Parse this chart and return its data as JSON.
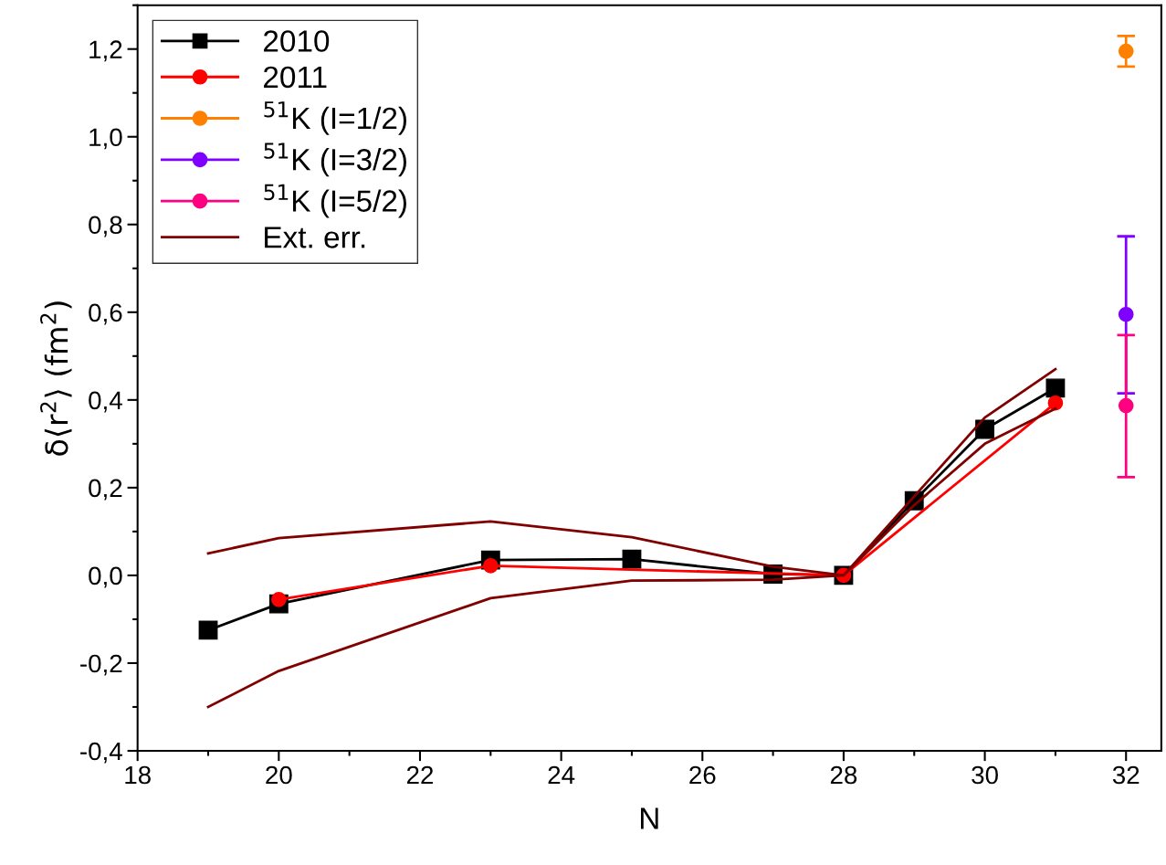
{
  "chart_data": {
    "type": "line",
    "xlabel": "N",
    "ylabel": "δ⟨r$^{2}$⟩ (fm$^{2}$)",
    "xlim": [
      18,
      32.5
    ],
    "xticks": [
      18,
      20,
      22,
      24,
      26,
      28,
      30,
      32
    ],
    "ylim": [
      -0.4,
      1.3
    ],
    "yticks": [
      {
        "value": -0.4,
        "label": "-0,4"
      },
      {
        "value": -0.2,
        "label": "-0,2"
      },
      {
        "value": 0,
        "label": "0,0"
      },
      {
        "value": 0.2,
        "label": "0,2"
      },
      {
        "value": 0.4,
        "label": "0,4"
      },
      {
        "value": 0.6,
        "label": "0,6"
      },
      {
        "value": 0.8,
        "label": "0,8"
      },
      {
        "value": 1.0,
        "label": "1,0"
      },
      {
        "value": 1.2,
        "label": "1,2"
      }
    ],
    "grid": false,
    "legend": "top left",
    "series": [
      {
        "name": "2010",
        "color": "#000000",
        "marker": "square",
        "x": [
          19,
          20,
          23,
          25,
          27,
          28,
          29,
          30,
          31
        ],
        "values": [
          -0.125,
          -0.065,
          0.035,
          0.037,
          0.003,
          0,
          0.17,
          0.333,
          0.427
        ]
      },
      {
        "name": "2011",
        "color": "#ff0000",
        "marker": "circle",
        "x": [
          20,
          23,
          28,
          31
        ],
        "values": [
          -0.055,
          0.022,
          0,
          0.393
        ]
      },
      {
        "name": "$^{51}$K (I=1/2)",
        "color": "#ff8000",
        "marker": "circle",
        "x": [
          32
        ],
        "values": [
          1.195
        ],
        "errors": [
          [
            1.16,
            1.23
          ]
        ]
      },
      {
        "name": "$^{51}$K (I=3/2)",
        "color": "#8000ff",
        "marker": "circle",
        "x": [
          32
        ],
        "values": [
          0.595
        ],
        "errors": [
          [
            0.415,
            0.773
          ]
        ]
      },
      {
        "name": "$^{51}$K (I=5/2)",
        "color": "#ff0080",
        "marker": "circle",
        "x": [
          32
        ],
        "values": [
          0.387
        ],
        "errors": [
          [
            0.224,
            0.548
          ]
        ]
      },
      {
        "name": "Ext. err.",
        "color": "#800000",
        "marker": "none",
        "x": [
          19,
          20,
          23,
          25,
          27,
          28,
          29,
          30,
          31
        ],
        "values": [
          0.05,
          0.085,
          0.123,
          0.087,
          0.02,
          0,
          0.18,
          0.36,
          0.47
        ]
      },
      {
        "color": "#800000",
        "marker": "none",
        "x": [
          19,
          20,
          23,
          25,
          27,
          28,
          29,
          30,
          31
        ],
        "values": [
          -0.3,
          -0.218,
          -0.052,
          -0.012,
          -0.01,
          0,
          0.16,
          0.3,
          0.38
        ]
      }
    ]
  }
}
